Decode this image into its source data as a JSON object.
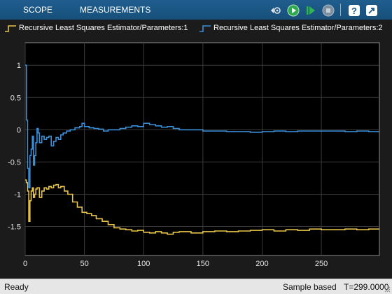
{
  "toolstrip": {
    "tabs": [
      {
        "label": "SCOPE"
      },
      {
        "label": "MEASUREMENTS"
      }
    ],
    "icons": [
      "signal-select-icon",
      "run-icon",
      "step-forward-icon",
      "stop-icon",
      "help-icon",
      "undock-icon"
    ],
    "colors": {
      "bar": "#1a5686",
      "run_green": "#2fa84f"
    }
  },
  "legend": {
    "items": [
      {
        "label": "Recursive Least Squares Estimator/Parameters:1",
        "color": "#e8c547"
      },
      {
        "label": "Recursive Least Squares Estimator/Parameters:2",
        "color": "#3a8fd8"
      }
    ]
  },
  "chart_data": {
    "type": "line",
    "title": "",
    "xlabel": "",
    "ylabel": "",
    "xlim": [
      0,
      299
    ],
    "ylim": [
      -1.95,
      1.35
    ],
    "grid": true,
    "xticks": [
      0,
      50,
      100,
      150,
      200,
      250
    ],
    "yticks": [
      1,
      0.5,
      0,
      -0.5,
      -1,
      -1.5
    ],
    "ytick_labels": [
      "1",
      "0.5",
      "0",
      "-0.5",
      "-1",
      "-1.5"
    ],
    "xtick_labels": [
      "0",
      "50",
      "100",
      "150",
      "200",
      "250"
    ],
    "series": [
      {
        "name": "Recursive Least Squares Estimator/Parameters:1",
        "color": "#e8c547",
        "x": [
          0,
          1,
          2,
          3,
          4,
          5,
          6,
          7,
          8,
          9,
          10,
          12,
          14,
          16,
          18,
          20,
          22,
          24,
          26,
          28,
          30,
          33,
          36,
          40,
          44,
          48,
          52,
          56,
          60,
          65,
          70,
          75,
          80,
          85,
          90,
          95,
          100,
          105,
          110,
          115,
          120,
          125,
          130,
          140,
          150,
          160,
          170,
          180,
          190,
          200,
          210,
          220,
          230,
          240,
          250,
          260,
          270,
          280,
          290,
          299
        ],
        "y": [
          -0.78,
          -0.82,
          -0.95,
          -1.42,
          -1.1,
          -0.95,
          -0.9,
          -1.05,
          -1.0,
          -0.92,
          -0.9,
          -1.05,
          -0.95,
          -0.9,
          -0.92,
          -0.88,
          -0.9,
          -0.86,
          -0.85,
          -0.9,
          -0.88,
          -0.95,
          -1.0,
          -1.12,
          -1.2,
          -1.28,
          -1.3,
          -1.33,
          -1.38,
          -1.42,
          -1.47,
          -1.52,
          -1.54,
          -1.55,
          -1.57,
          -1.56,
          -1.59,
          -1.6,
          -1.58,
          -1.6,
          -1.62,
          -1.59,
          -1.58,
          -1.6,
          -1.58,
          -1.57,
          -1.58,
          -1.57,
          -1.56,
          -1.55,
          -1.57,
          -1.55,
          -1.56,
          -1.54,
          -1.55,
          -1.55,
          -1.54,
          -1.55,
          -1.54,
          -1.54
        ]
      },
      {
        "name": "Recursive Least Squares Estimator/Parameters:2",
        "color": "#3a8fd8",
        "x": [
          0,
          1,
          2,
          3,
          4,
          5,
          6,
          7,
          8,
          9,
          10,
          11,
          12,
          14,
          16,
          18,
          20,
          22,
          24,
          26,
          28,
          30,
          32,
          35,
          38,
          42,
          46,
          48,
          50,
          54,
          58,
          62,
          66,
          70,
          75,
          80,
          85,
          90,
          95,
          100,
          105,
          110,
          115,
          120,
          125,
          130,
          140,
          150,
          160,
          170,
          180,
          190,
          200,
          210,
          220,
          230,
          240,
          250,
          260,
          270,
          280,
          290,
          299
        ],
        "y": [
          1.0,
          0.15,
          -0.6,
          -0.9,
          -0.4,
          -0.3,
          -0.1,
          -0.55,
          -0.4,
          -0.2,
          0.02,
          -0.05,
          -0.2,
          -0.1,
          -0.15,
          -0.12,
          -0.1,
          -0.25,
          -0.18,
          -0.12,
          -0.15,
          -0.08,
          -0.05,
          -0.02,
          0.0,
          0.03,
          0.05,
          0.1,
          0.05,
          0.03,
          0.02,
          0.01,
          -0.02,
          0.0,
          0.0,
          0.02,
          0.04,
          0.06,
          0.05,
          0.1,
          0.08,
          0.06,
          0.04,
          0.05,
          0.02,
          0.0,
          0.0,
          -0.02,
          -0.02,
          -0.03,
          -0.03,
          -0.04,
          -0.03,
          -0.02,
          -0.03,
          -0.02,
          -0.02,
          -0.02,
          -0.02,
          -0.03,
          -0.02,
          -0.03,
          -0.03
        ]
      }
    ]
  },
  "status": {
    "ready": "Ready",
    "mode": "Sample based",
    "time": "T=299.0000"
  }
}
